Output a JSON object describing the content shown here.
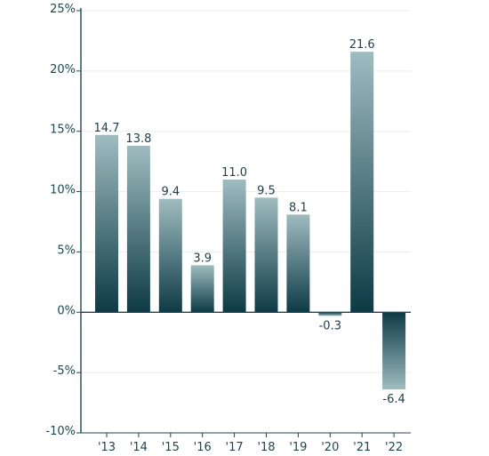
{
  "chart_data": {
    "type": "bar",
    "categories": [
      "'13",
      "'14",
      "'15",
      "'16",
      "'17",
      "'18",
      "'19",
      "'20",
      "'21",
      "'22"
    ],
    "values": [
      14.7,
      13.8,
      9.4,
      3.9,
      11.0,
      9.5,
      8.1,
      -0.3,
      21.6,
      -6.4
    ],
    "value_labels": [
      "14.7",
      "13.8",
      "9.4",
      "3.9",
      "11.0",
      "9.5",
      "8.1",
      "-0.3",
      "21.6",
      "-6.4"
    ],
    "y_ticks": [
      25,
      20,
      15,
      10,
      5,
      0,
      -5,
      -10
    ],
    "y_tick_labels": [
      "25%",
      "20%",
      "15%",
      "10%",
      "5%",
      "0%",
      "-5%",
      "-10%"
    ],
    "ylim": [
      -10,
      25
    ],
    "grid": true,
    "colors": {
      "bar_dark": "#0d3a45",
      "bar_light": "#9fbcc0",
      "axis": "#1d4650",
      "grid": "#e8eded",
      "text": "#1d4650"
    }
  }
}
